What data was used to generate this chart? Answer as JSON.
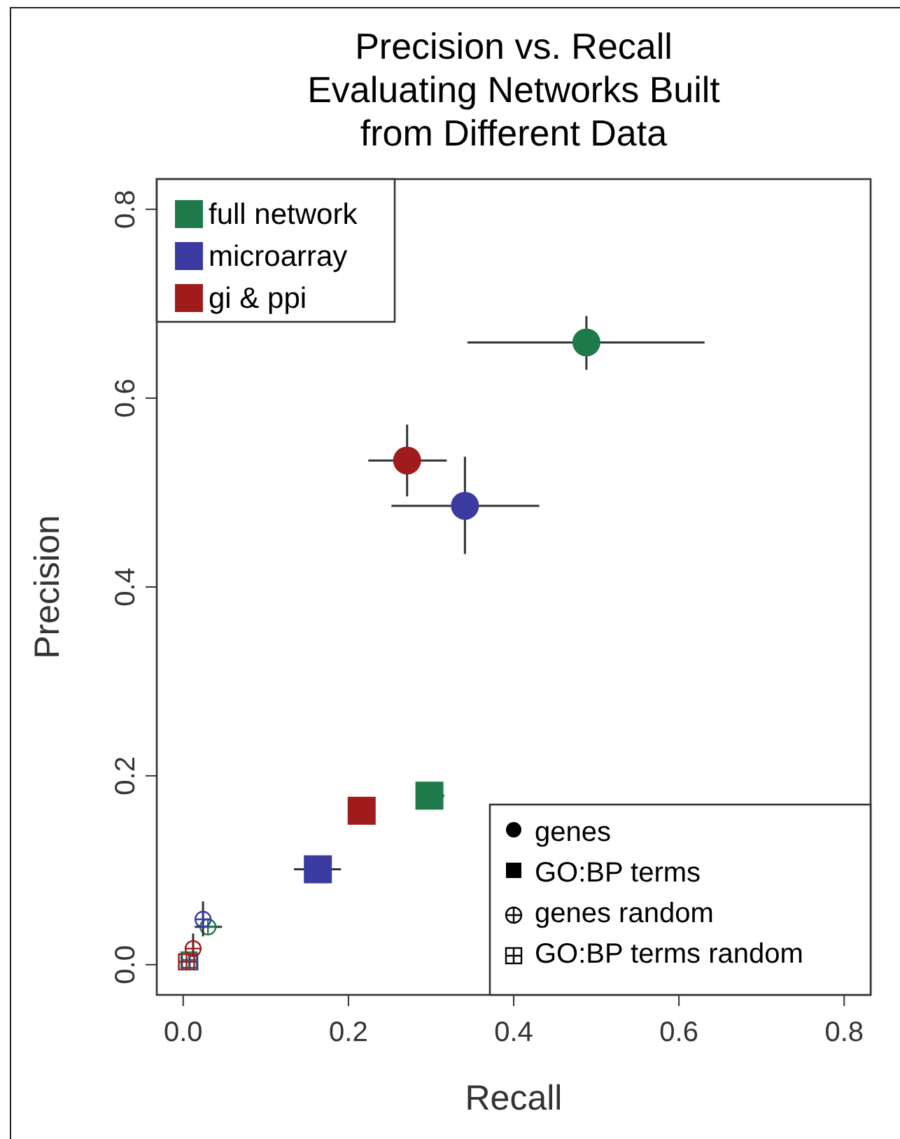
{
  "chart_data": {
    "type": "scatter",
    "title": "Precision vs. Recall\nEvaluating Networks Built\nfrom Different Data",
    "xlabel": "Recall",
    "ylabel": "Precision",
    "xlim": [
      -0.032,
      0.832
    ],
    "ylim": [
      -0.032,
      0.832
    ],
    "xticks": [
      {
        "value": 0,
        "label": "0.0"
      },
      0.2,
      0.4,
      0.6,
      0.8
    ],
    "yticks": [
      {
        "value": 0,
        "label": "0.0"
      },
      0.2,
      0.4,
      0.6,
      0.8
    ],
    "grid": false,
    "legend": "top left",
    "marker": [
      "circle",
      "square",
      "circle-plus",
      "square-plus"
    ],
    "annotations": [
      "genes",
      "GO:BP terms",
      "genes random",
      "GO:BP terms random"
    ],
    "series": [
      {
        "name": "full network",
        "color": "#1e7a4a",
        "x": [
          0.488,
          0.298,
          0.03,
          0.007
        ],
        "values": [
          0.659,
          0.179,
          0.04,
          0.005
        ],
        "xerrors": [
          [
            0.344,
            0.631
          ],
          [
            0.283,
            0.316
          ],
          [
            0.014,
            0.047
          ],
          null
        ],
        "errors": [
          [
            0.63,
            0.687
          ],
          null,
          null,
          null
        ]
      },
      {
        "name": "microarray",
        "color": "#3a3aa0",
        "x": [
          0.341,
          0.163,
          0.024,
          0.008
        ],
        "values": [
          0.486,
          0.101,
          0.048,
          0.003
        ],
        "xerrors": [
          [
            0.252,
            0.431
          ],
          [
            0.134,
            0.191
          ],
          null,
          null
        ],
        "errors": [
          [
            0.435,
            0.538
          ],
          null,
          [
            0.03,
            0.067
          ],
          null
        ]
      },
      {
        "name": "gi & ppi",
        "color": "#a01c1c",
        "x": [
          0.271,
          0.216,
          0.012,
          0.004
        ],
        "values": [
          0.534,
          0.163,
          0.017,
          0.003
        ],
        "xerrors": [
          [
            0.224,
            0.319
          ],
          null,
          null,
          null
        ],
        "errors": [
          [
            0.496,
            0.572
          ],
          null,
          [
            0.008,
            0.033
          ],
          null
        ]
      }
    ]
  }
}
